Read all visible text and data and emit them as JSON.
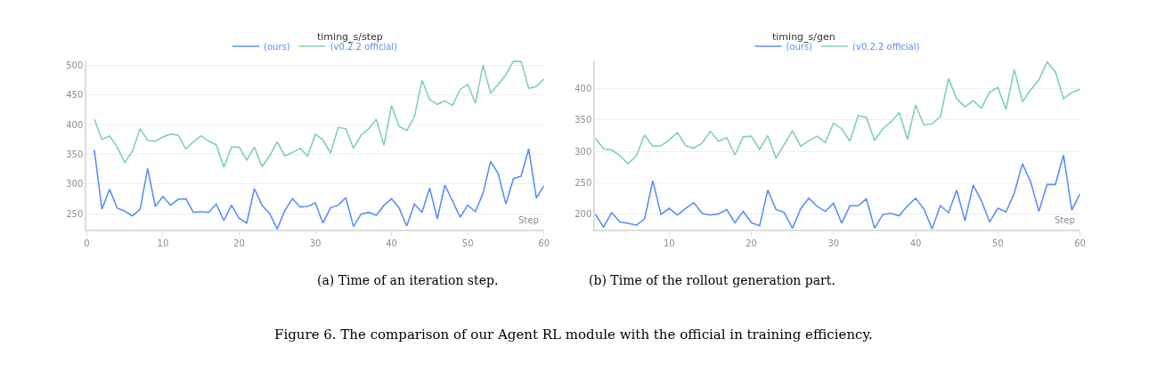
{
  "chart_data": [
    {
      "type": "line",
      "title": "timing_s/step",
      "xlabel": "Step",
      "x": [
        1,
        2,
        3,
        4,
        5,
        6,
        7,
        8,
        9,
        10,
        11,
        12,
        13,
        14,
        15,
        16,
        17,
        18,
        19,
        20,
        21,
        22,
        23,
        24,
        25,
        26,
        27,
        28,
        29,
        30,
        31,
        32,
        33,
        34,
        35,
        36,
        37,
        38,
        39,
        40,
        41,
        42,
        43,
        44,
        45,
        46,
        47,
        48,
        49,
        50,
        51,
        52,
        53,
        54,
        55,
        56,
        57,
        58,
        59,
        60
      ],
      "series": [
        {
          "name": "(ours)",
          "color": "#5b8ff9",
          "values": [
            357,
            257,
            291,
            259,
            254,
            246,
            257,
            326,
            262,
            279,
            264,
            274,
            275,
            252,
            253,
            252,
            266,
            238,
            264,
            242,
            234,
            292,
            264,
            250,
            224,
            255,
            275,
            261,
            262,
            268,
            234,
            260,
            264,
            277,
            228,
            249,
            252,
            247,
            264,
            275,
            259,
            229,
            266,
            252,
            293,
            241,
            298,
            271,
            244,
            264,
            253,
            284,
            338,
            317,
            266,
            309,
            313,
            359,
            276,
            297
          ]
        },
        {
          "name": "(v0.2.2 official)",
          "color": "#7fd1b3",
          "values": [
            409,
            375,
            381,
            362,
            336,
            355,
            393,
            373,
            372,
            379,
            384,
            382,
            359,
            371,
            381,
            372,
            366,
            328,
            362,
            362,
            340,
            362,
            329,
            347,
            371,
            347,
            353,
            360,
            347,
            384,
            374,
            352,
            395,
            393,
            360,
            382,
            393,
            409,
            365,
            432,
            397,
            390,
            413,
            475,
            442,
            434,
            440,
            432,
            459,
            468,
            436,
            500,
            453,
            468,
            484,
            507,
            506,
            461,
            464,
            477
          ]
        }
      ],
      "xlim": [
        0,
        60
      ],
      "xticks": [
        0,
        10,
        20,
        30,
        40,
        50,
        60
      ],
      "ylim": [
        223,
        508
      ],
      "yticks": [
        250,
        300,
        350,
        400,
        450,
        500
      ],
      "grid": "y",
      "legend": "top",
      "marker": "none",
      "line_style": "solid",
      "annotations": [
        "(a) Time of an iteration step."
      ]
    },
    {
      "type": "line",
      "title": "timing_s/gen",
      "xlabel": "Step",
      "x": [
        1,
        2,
        3,
        4,
        5,
        6,
        7,
        8,
        9,
        10,
        11,
        12,
        13,
        14,
        15,
        16,
        17,
        18,
        19,
        20,
        21,
        22,
        23,
        24,
        25,
        26,
        27,
        28,
        29,
        30,
        31,
        32,
        33,
        34,
        35,
        36,
        37,
        38,
        39,
        40,
        41,
        42,
        43,
        44,
        45,
        46,
        47,
        48,
        49,
        50,
        51,
        52,
        53,
        54,
        55,
        56,
        57,
        58,
        59,
        60
      ],
      "series": [
        {
          "name": "(ours)",
          "color": "#5b8ff9",
          "values": [
            200,
            179,
            202,
            187,
            185,
            182,
            192,
            253,
            199,
            209,
            198,
            209,
            218,
            201,
            198,
            200,
            207,
            186,
            204,
            186,
            181,
            238,
            207,
            202,
            177,
            208,
            225,
            212,
            204,
            217,
            185,
            213,
            213,
            224,
            177,
            199,
            201,
            197,
            213,
            225,
            208,
            176,
            213,
            202,
            238,
            189,
            246,
            221,
            187,
            209,
            203,
            233,
            280,
            251,
            204,
            247,
            247,
            294,
            206,
            232
          ]
        },
        {
          "name": "(v0.2.2 official)",
          "color": "#7fd1b3",
          "values": [
            321,
            304,
            302,
            293,
            280,
            293,
            326,
            308,
            309,
            318,
            330,
            309,
            305,
            313,
            332,
            316,
            322,
            294,
            323,
            324,
            303,
            325,
            289,
            311,
            333,
            308,
            317,
            324,
            314,
            345,
            336,
            316,
            357,
            354,
            317,
            336,
            347,
            362,
            319,
            374,
            342,
            344,
            355,
            416,
            384,
            371,
            381,
            369,
            394,
            402,
            367,
            431,
            379,
            398,
            414,
            443,
            427,
            384,
            394,
            399
          ]
        }
      ],
      "xlim": [
        1,
        60
      ],
      "xticks": [
        10,
        20,
        30,
        40,
        50,
        60
      ],
      "ylim": [
        175,
        445
      ],
      "yticks": [
        200,
        250,
        300,
        350,
        400
      ],
      "grid": "y",
      "legend": "top",
      "marker": "none",
      "line_style": "solid",
      "annotations": [
        "(b) Time of the rollout generation part.",
        "Figure 6. The comparison of our Agent RL module with the official in training efficiency."
      ]
    }
  ]
}
